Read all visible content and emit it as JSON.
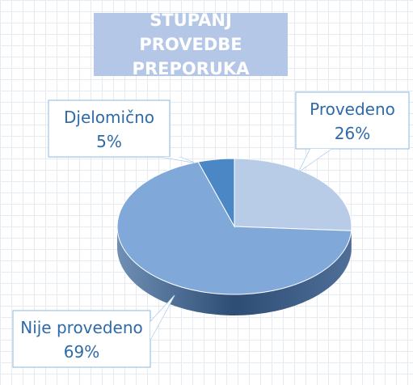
{
  "chart_data": {
    "type": "pie3d",
    "title": "STUPANJ PROVEDBE PREPORUKA",
    "categories": [
      "Provedeno",
      "Nije provedeno",
      "Djelomično"
    ],
    "values": [
      26,
      69,
      5
    ],
    "value_labels": [
      "26%",
      "69%",
      "5%"
    ],
    "colors": [
      "#b8cce8",
      "#80a9d9",
      "#4b87c5"
    ]
  }
}
